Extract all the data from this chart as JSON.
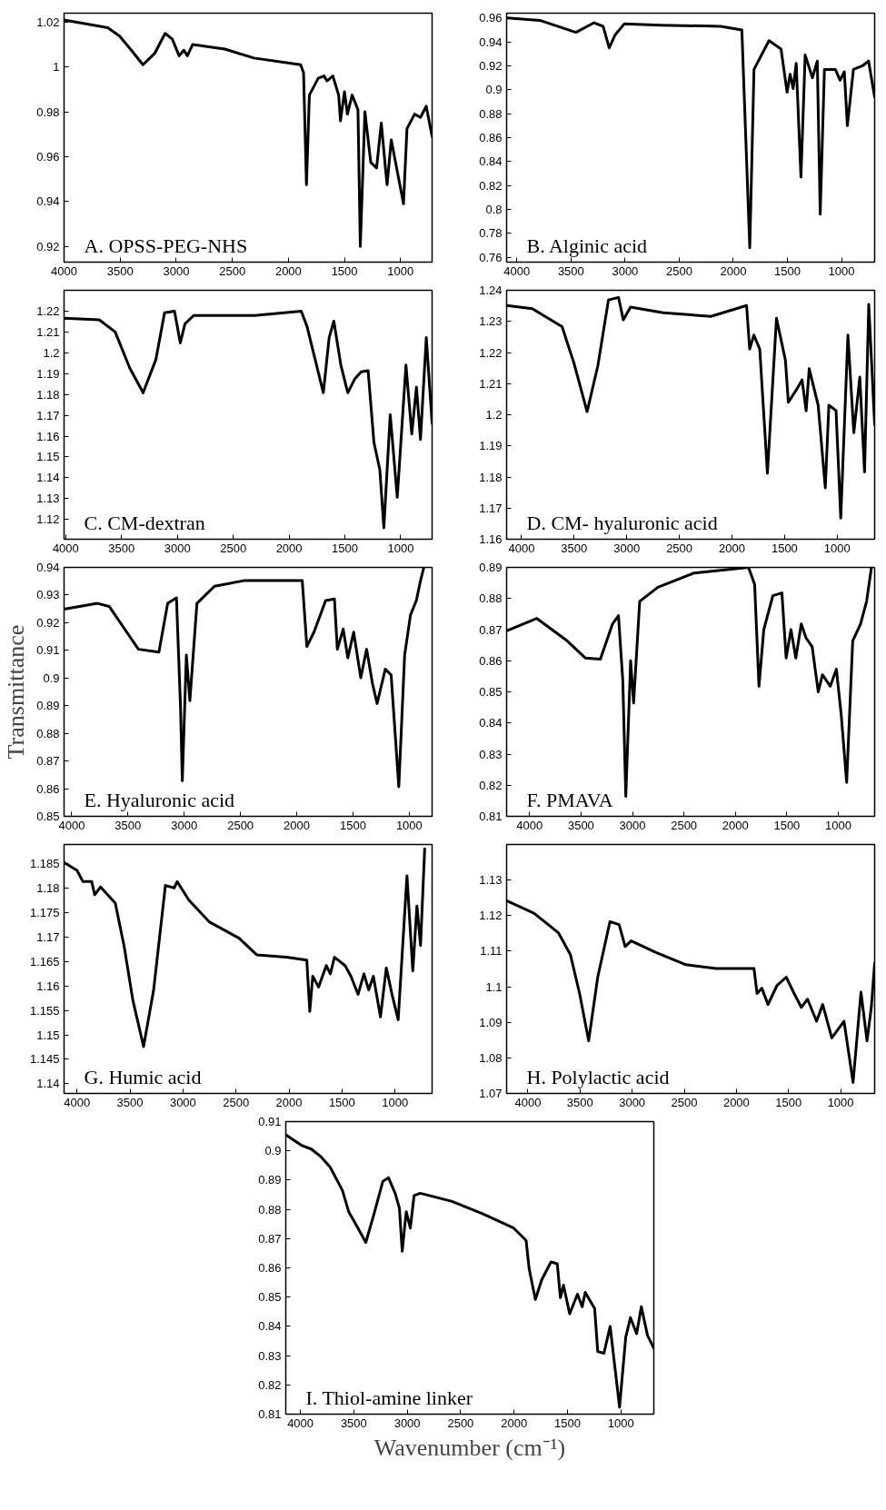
{
  "chart_data": [
    {
      "type": "line",
      "annotations": [
        "A. OPSS-PEG-NHS"
      ],
      "xlim": [
        4000,
        719
      ],
      "ylim": [
        0.913,
        1.024
      ],
      "xticks": [
        4000,
        3500,
        3000,
        2500,
        2000,
        1500,
        1000
      ],
      "yticks": [
        0.92,
        0.94,
        0.96,
        0.98,
        1,
        1.02
      ],
      "series": [
        {
          "color": "#000000",
          "x": [
            4000,
            3610,
            3505,
            3400,
            3297,
            3193,
            3099,
            3036,
            2974,
            2932,
            2901,
            2854,
            2568,
            2307,
            1891,
            1865,
            1839,
            1813,
            1734,
            1682,
            1656,
            1604,
            1552,
            1536,
            1500,
            1474,
            1432,
            1380,
            1359,
            1318,
            1266,
            1214,
            1172,
            1135,
            1120,
            1083,
            1016,
            974,
            943,
            875,
            823,
            771,
            719
          ],
          "values": [
            1.021,
            1.0175,
            1.0138,
            1.0075,
            1.001,
            1.006,
            1.015,
            1.0125,
            1.005,
            1.0075,
            1.005,
            1.01,
            1.008,
            1.004,
            1.001,
            0.9975,
            0.9475,
            0.9875,
            0.995,
            0.996,
            0.9938,
            0.996,
            0.9875,
            0.976,
            0.989,
            0.979,
            0.9875,
            0.981,
            0.92,
            0.98,
            0.9575,
            0.955,
            0.975,
            0.955,
            0.9475,
            0.9675,
            0.95,
            0.939,
            0.9725,
            0.979,
            0.9775,
            0.9825,
            0.969
          ]
        }
      ]
    },
    {
      "type": "line",
      "annotations": [
        "B. Alginic acid"
      ],
      "xlim": [
        4095,
        694
      ],
      "ylim": [
        0.756,
        0.964
      ],
      "xticks": [
        4000,
        3500,
        3000,
        2500,
        2000,
        1500,
        1000
      ],
      "yticks": [
        0.76,
        0.78,
        0.8,
        0.82,
        0.84,
        0.86,
        0.88,
        0.9,
        0.92,
        0.94,
        0.96
      ],
      "series": [
        {
          "color": "#000000",
          "x": [
            4090,
            3788,
            3454,
            3287,
            3203,
            3147,
            3091,
            3008,
            2673,
            2116,
            1921,
            1848,
            1809,
            1670,
            1559,
            1503,
            1475,
            1447,
            1419,
            1375,
            1336,
            1269,
            1224,
            1197,
            1158,
            1057,
            1013,
            974,
            946,
            890,
            806,
            750,
            694
          ],
          "values": [
            0.96,
            0.958,
            0.948,
            0.956,
            0.953,
            0.935,
            0.946,
            0.955,
            0.954,
            0.953,
            0.95,
            0.768,
            0.917,
            0.941,
            0.934,
            0.898,
            0.913,
            0.901,
            0.922,
            0.827,
            0.929,
            0.91,
            0.924,
            0.796,
            0.917,
            0.917,
            0.908,
            0.915,
            0.87,
            0.917,
            0.92,
            0.924,
            0.894
          ]
        }
      ]
    },
    {
      "type": "line",
      "annotations": [
        "C. CM-dextran"
      ],
      "xlim": [
        4015,
        719
      ],
      "ylim": [
        1.1105,
        1.23
      ],
      "xticks": [
        4000,
        3500,
        3000,
        2500,
        2000,
        1500,
        1000
      ],
      "yticks": [
        1.12,
        1.13,
        1.14,
        1.15,
        1.16,
        1.17,
        1.18,
        1.19,
        1.2,
        1.21,
        1.22
      ],
      "series": [
        {
          "color": "#000000",
          "x": [
            4015,
            3700,
            3557,
            3427,
            3307,
            3193,
            3115,
            3026,
            2974,
            2932,
            2854,
            2307,
            1891,
            1839,
            1760,
            1693,
            1641,
            1599,
            1536,
            1474,
            1411,
            1354,
            1292,
            1240,
            1187,
            1151,
            1094,
            1031,
            953,
            901,
            859,
            823,
            771,
            719
          ],
          "values": [
            1.2166,
            1.2158,
            1.21,
            1.1927,
            1.1808,
            1.1967,
            1.2192,
            1.22,
            1.2047,
            1.2139,
            1.2179,
            1.2179,
            1.22,
            1.2126,
            1.1954,
            1.1808,
            1.2073,
            1.2152,
            1.1941,
            1.1808,
            1.1875,
            1.1909,
            1.1914,
            1.157,
            1.1438,
            1.116,
            1.1703,
            1.1306,
            1.1941,
            1.161,
            1.1835,
            1.1584,
            1.2073,
            1.1663
          ]
        }
      ]
    },
    {
      "type": "line",
      "annotations": [
        "D. CM- hyaluronic acid"
      ],
      "xlim": [
        4142,
        644
      ],
      "ylim": [
        1.16,
        1.24
      ],
      "xticks": [
        4000,
        3500,
        3000,
        2500,
        2000,
        1500,
        1000
      ],
      "yticks": [
        1.16,
        1.17,
        1.18,
        1.19,
        1.2,
        1.21,
        1.22,
        1.23,
        1.24
      ],
      "series": [
        {
          "color": "#000000",
          "x": [
            4142,
            3898,
            3615,
            3502,
            3377,
            3275,
            3174,
            3078,
            3033,
            2964,
            2653,
            2200,
            1861,
            1832,
            1792,
            1736,
            1663,
            1577,
            1492,
            1464,
            1379,
            1334,
            1295,
            1266,
            1181,
            1113,
            1079,
            1011,
            966,
            898,
            842,
            785,
            740,
            700,
            644
          ],
          "values": [
            1.2351,
            1.2341,
            1.2283,
            1.2166,
            1.201,
            1.2157,
            1.2369,
            1.2377,
            1.2305,
            1.2346,
            1.2328,
            1.2316,
            1.2351,
            1.2211,
            1.2256,
            1.2211,
            1.1812,
            1.231,
            1.2175,
            1.204,
            1.2085,
            1.2112,
            1.2013,
            1.2148,
            1.2031,
            1.1765,
            1.2031,
            1.2013,
            1.1668,
            1.2256,
            1.1942,
            1.2121,
            1.1816,
            1.2355,
            1.1968
          ]
        }
      ]
    },
    {
      "type": "line",
      "ylabel": "Transmittance",
      "annotations": [
        "E. Hyaluronic acid"
      ],
      "xlim": [
        4068,
        797
      ],
      "ylim": [
        0.85,
        0.94
      ],
      "xticks": [
        4000,
        3500,
        3000,
        2500,
        2000,
        1500,
        1000
      ],
      "yticks": [
        0.85,
        0.86,
        0.87,
        0.88,
        0.89,
        0.9,
        0.91,
        0.92,
        0.93,
        0.94
      ],
      "series": [
        {
          "color": "#000000",
          "x": [
            4068,
            3771,
            3667,
            3511,
            3407,
            3225,
            3147,
            3069,
            3033,
            3017,
            2981,
            2950,
            2887,
            2731,
            2471,
            1951,
            1910,
            1847,
            1743,
            1665,
            1639,
            1587,
            1546,
            1494,
            1431,
            1379,
            1327,
            1286,
            1213,
            1161,
            1093,
            1041,
            989,
            937,
            900,
            870
          ],
          "values": [
            0.9249,
            0.927,
            0.9259,
            0.9166,
            0.9104,
            0.9094,
            0.927,
            0.929,
            0.8897,
            0.8628,
            0.9083,
            0.8918,
            0.927,
            0.9332,
            0.9352,
            0.9352,
            0.9114,
            0.9166,
            0.928,
            0.9286,
            0.9104,
            0.9177,
            0.9073,
            0.9166,
            0.9001,
            0.9104,
            0.898,
            0.8908,
            0.9032,
            0.9011,
            0.8607,
            0.9083,
            0.9228,
            0.928,
            0.9352,
            0.94
          ]
        }
      ]
    },
    {
      "type": "line",
      "annotations": [
        "F. PMAVA"
      ],
      "xlim": [
        4223,
        647
      ],
      "ylim": [
        0.81,
        0.89
      ],
      "xticks": [
        4000,
        3500,
        3000,
        2500,
        2000,
        1500,
        1000
      ],
      "yticks": [
        0.81,
        0.82,
        0.83,
        0.84,
        0.85,
        0.86,
        0.87,
        0.88,
        0.89
      ],
      "series": [
        {
          "color": "#000000",
          "x": [
            4223,
            3929,
            3635,
            3459,
            3312,
            3194,
            3136,
            3094,
            3065,
            3018,
            2989,
            2930,
            2753,
            2401,
            1872,
            1813,
            1771,
            1724,
            1636,
            1548,
            1507,
            1460,
            1413,
            1360,
            1313,
            1254,
            1195,
            1154,
            1078,
            1019,
            972,
            919,
            860,
            784,
            725,
            678
          ],
          "values": [
            0.8696,
            0.8736,
            0.8664,
            0.8609,
            0.8605,
            0.8718,
            0.8745,
            0.8536,
            0.8164,
            0.86,
            0.8464,
            0.8791,
            0.8836,
            0.8882,
            0.89,
            0.8845,
            0.8518,
            0.87,
            0.8809,
            0.8818,
            0.8609,
            0.87,
            0.8609,
            0.8718,
            0.8673,
            0.8645,
            0.85,
            0.8555,
            0.8518,
            0.8573,
            0.8427,
            0.8209,
            0.8664,
            0.8718,
            0.8791,
            0.89
          ]
        }
      ]
    },
    {
      "type": "line",
      "annotations": [
        "G. Humic acid"
      ],
      "xlim": [
        4122,
        650
      ],
      "ylim": [
        1.138,
        1.189
      ],
      "xticks": [
        4000,
        3500,
        3000,
        2500,
        2000,
        1500,
        1000
      ],
      "yticks": [
        1.14,
        1.145,
        1.15,
        1.155,
        1.16,
        1.165,
        1.17,
        1.175,
        1.18,
        1.185
      ],
      "series": [
        {
          "color": "#000000",
          "x": [
            4122,
            4000,
            3944,
            3861,
            3833,
            3778,
            3639,
            3555,
            3472,
            3372,
            3277,
            3166,
            3083,
            3055,
            2944,
            2749,
            2471,
            2305,
            2026,
            1832,
            1804,
            1776,
            1721,
            1648,
            1610,
            1571,
            1471,
            1416,
            1348,
            1293,
            1248,
            1204,
            1137,
            1082,
            1026,
            970,
            887,
            832,
            793,
            759,
            720
          ],
          "values": [
            1.1853,
            1.1837,
            1.1814,
            1.1814,
            1.1787,
            1.1803,
            1.177,
            1.1681,
            1.157,
            1.1476,
            1.1592,
            1.1806,
            1.1801,
            1.1814,
            1.1776,
            1.1731,
            1.1698,
            1.1664,
            1.1659,
            1.1653,
            1.1548,
            1.162,
            1.1598,
            1.1642,
            1.1625,
            1.1659,
            1.1642,
            1.162,
            1.1583,
            1.1625,
            1.1592,
            1.162,
            1.1537,
            1.1637,
            1.1581,
            1.1531,
            1.1826,
            1.1631,
            1.1764,
            1.1683,
            1.1881
          ]
        }
      ]
    },
    {
      "type": "line",
      "annotations": [
        "H. Polylactic acid"
      ],
      "xlim": [
        4204,
        674
      ],
      "ylim": [
        1.07,
        1.14
      ],
      "xticks": [
        4000,
        3500,
        3000,
        2500,
        2000,
        1500,
        1000
      ],
      "yticks": [
        1.07,
        1.08,
        1.09,
        1.1,
        1.11,
        1.12,
        1.13
      ],
      "series": [
        {
          "color": "#000000",
          "x": [
            4204,
            3942,
            3708,
            3592,
            3504,
            3417,
            3330,
            3213,
            3125,
            3067,
            3009,
            2776,
            2484,
            2193,
            1831,
            1802,
            1756,
            1697,
            1610,
            1522,
            1446,
            1377,
            1318,
            1231,
            1172,
            1085,
            968,
            881,
            805,
            747,
            706,
            674
          ],
          "values": [
            1.1242,
            1.1207,
            1.1152,
            1.109,
            1.0981,
            1.0848,
            1.1027,
            1.1183,
            1.1175,
            1.1113,
            1.1129,
            1.1097,
            1.1062,
            1.1051,
            1.1051,
            1.0981,
            1.0996,
            1.095,
            1.1004,
            1.1027,
            1.0981,
            1.0942,
            1.0965,
            1.0903,
            1.095,
            1.0856,
            1.0903,
            1.0731,
            1.0985,
            1.0848,
            1.0942,
            1.1066
          ]
        }
      ]
    },
    {
      "type": "line",
      "xlabel": "Wavenumber (cm⁻¹)",
      "annotations": [
        "I. Thiol-amine linker"
      ],
      "xlim": [
        4137,
        691
      ],
      "ylim": [
        0.81,
        0.91
      ],
      "xticks": [
        4000,
        3500,
        3000,
        2500,
        2000,
        1500,
        1000
      ],
      "yticks": [
        0.81,
        0.82,
        0.83,
        0.84,
        0.85,
        0.86,
        0.87,
        0.88,
        0.89,
        0.9,
        0.91
      ],
      "series": [
        {
          "color": "#000000",
          "x": [
            4137,
            3985,
            3898,
            3811,
            3723,
            3607,
            3548,
            3461,
            3388,
            3315,
            3228,
            3175,
            3111,
            3073,
            3047,
            3009,
            2971,
            2936,
            2878,
            2586,
            2295,
            2003,
            1887,
            1858,
            1800,
            1741,
            1654,
            1595,
            1566,
            1537,
            1479,
            1406,
            1362,
            1333,
            1245,
            1216,
            1158,
            1100,
            1012,
            954,
            910,
            852,
            808,
            750,
            691
          ],
          "values": [
            0.9055,
            0.9018,
            0.9006,
            0.8981,
            0.8945,
            0.8865,
            0.8792,
            0.8736,
            0.8687,
            0.8779,
            0.8896,
            0.8908,
            0.8853,
            0.8804,
            0.8657,
            0.8792,
            0.8736,
            0.8847,
            0.8855,
            0.8828,
            0.8785,
            0.8736,
            0.8694,
            0.8596,
            0.8492,
            0.8559,
            0.862,
            0.8614,
            0.8498,
            0.8541,
            0.8443,
            0.851,
            0.8467,
            0.8516,
            0.8461,
            0.8314,
            0.8308,
            0.84,
            0.8124,
            0.8363,
            0.843,
            0.8375,
            0.8467,
            0.8369,
            0.8326
          ]
        }
      ]
    }
  ]
}
